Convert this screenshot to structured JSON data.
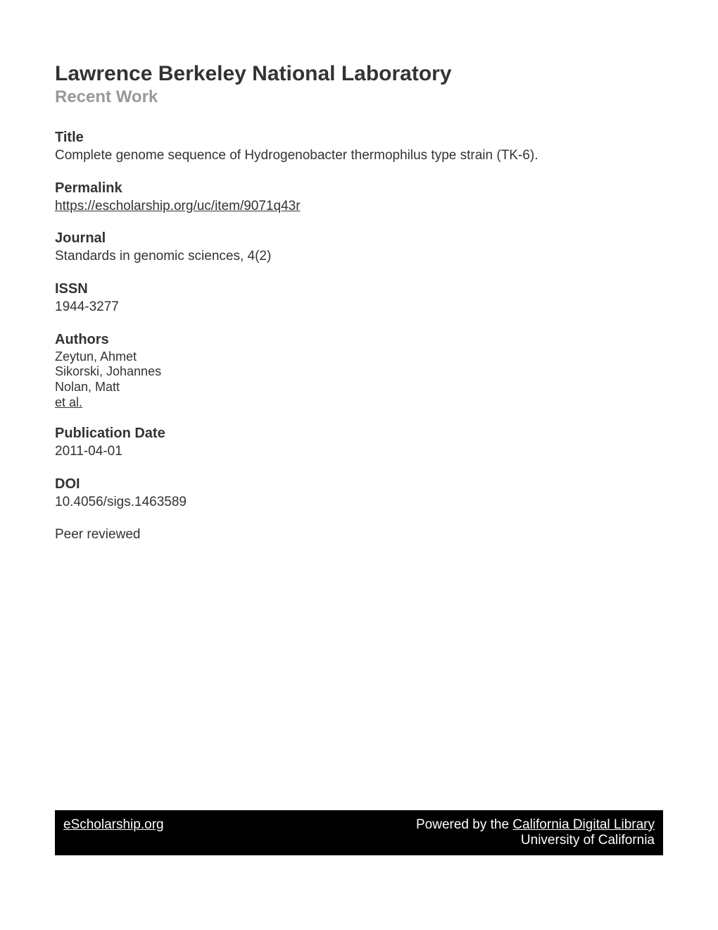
{
  "header": {
    "institution": "Lawrence Berkeley National Laboratory",
    "section": "Recent Work"
  },
  "metadata": {
    "title_label": "Title",
    "title_value": "Complete genome sequence of Hydrogenobacter thermophilus type strain (TK-6).",
    "permalink_label": "Permalink",
    "permalink_value": "https://escholarship.org/uc/item/9071q43r",
    "journal_label": "Journal",
    "journal_value": "Standards in genomic sciences, 4(2)",
    "issn_label": "ISSN",
    "issn_value": "1944-3277",
    "authors_label": "Authors",
    "authors": [
      "Zeytun, Ahmet",
      "Sikorski, Johannes",
      "Nolan, Matt"
    ],
    "authors_more": "et al.",
    "pubdate_label": "Publication Date",
    "pubdate_value": "2011-04-01",
    "doi_label": "DOI",
    "doi_value": "10.4056/sigs.1463589",
    "peer_reviewed": "Peer reviewed"
  },
  "footer": {
    "left_link": "eScholarship.org",
    "powered_by": "Powered by the ",
    "library_link": "California Digital Library",
    "university": "University of California"
  }
}
